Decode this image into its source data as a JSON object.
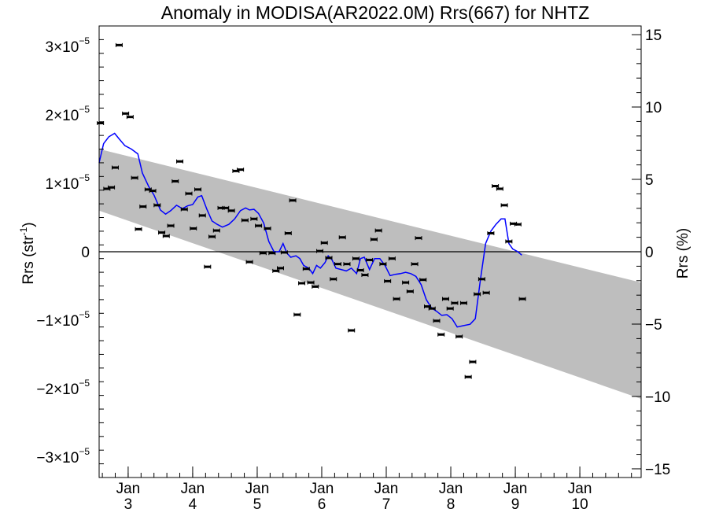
{
  "chart_data": {
    "type": "scatter",
    "title": "Anomaly in MODISA(AR2022.0M) Rrs(667) for NHTZ",
    "ylabel_left": "Rrs (str",
    "ylabel_left_sup": "-1",
    "ylabel_left_end": ")",
    "ylabel_right": "Rrs (%)",
    "x_ticks": [
      {
        "top": "Jan",
        "bottom": "3",
        "x": 3
      },
      {
        "top": "Jan",
        "bottom": "4",
        "x": 4
      },
      {
        "top": "Jan",
        "bottom": "5",
        "x": 5
      },
      {
        "top": "Jan",
        "bottom": "6",
        "x": 6
      },
      {
        "top": "Jan",
        "bottom": "7",
        "x": 7
      },
      {
        "top": "Jan",
        "bottom": "8",
        "x": 8
      },
      {
        "top": "Jan",
        "bottom": "9",
        "x": 9
      },
      {
        "top": "Jan",
        "bottom": "10",
        "x": 10
      }
    ],
    "xlim": [
      2.55,
      10.95
    ],
    "ylim_left": [
      -3.3e-05,
      3.3e-05
    ],
    "ylim_right": [
      -15.6,
      15.6
    ],
    "y_left_ticks": [
      {
        "v": -3e-05,
        "base": "−3×10",
        "exp": "−5"
      },
      {
        "v": -2e-05,
        "base": "−2×10",
        "exp": "−5"
      },
      {
        "v": -1e-05,
        "base": "−1×10",
        "exp": "−5"
      },
      {
        "v": 0,
        "base": "0",
        "exp": ""
      },
      {
        "v": 1e-05,
        "base": "1×10",
        "exp": "−5"
      },
      {
        "v": 2e-05,
        "base": "2×10",
        "exp": "−5"
      },
      {
        "v": 3e-05,
        "base": "3×10",
        "exp": "−5"
      }
    ],
    "y_right_ticks": [
      -15,
      -10,
      -5,
      0,
      5,
      10,
      15
    ],
    "band": {
      "x0": 2.55,
      "x1": 10.95,
      "upper0": 1.5e-05,
      "upper1": -4.5e-06,
      "lower0": 6e-06,
      "lower1": -2.15e-05
    },
    "colors": {
      "band": "#bebebe",
      "line": "#0000ff",
      "points": "#000000",
      "zero": "#000000"
    },
    "points": [
      [
        2.57,
        1.88e-05
      ],
      [
        2.67,
        9.2e-06
      ],
      [
        2.74,
        9.4e-06
      ],
      [
        2.8,
        1.23e-05
      ],
      [
        2.86,
        3.02e-05
      ],
      [
        2.96,
        2.02e-05
      ],
      [
        3.03,
        1.97e-05
      ],
      [
        3.1,
        1.08e-05
      ],
      [
        3.16,
        3.3e-06
      ],
      [
        3.23,
        6.6e-06
      ],
      [
        3.31,
        9.1e-06
      ],
      [
        3.38,
        8.9e-06
      ],
      [
        3.45,
        6.8e-06
      ],
      [
        3.52,
        2.8e-06
      ],
      [
        3.59,
        2.3e-06
      ],
      [
        3.66,
        3.8e-06
      ],
      [
        3.73,
        1.03e-05
      ],
      [
        3.8,
        1.32e-05
      ],
      [
        3.87,
        6.2e-06
      ],
      [
        3.94,
        8.5e-06
      ],
      [
        4.01,
        3.4e-06
      ],
      [
        4.08,
        9.1e-06
      ],
      [
        4.15,
        5.3e-06
      ],
      [
        4.23,
        -2.2e-06
      ],
      [
        4.3,
        2.2e-06
      ],
      [
        4.37,
        3.1e-06
      ],
      [
        4.44,
        6.4e-06
      ],
      [
        4.51,
        6.4e-06
      ],
      [
        4.6,
        6e-06
      ],
      [
        4.67,
        1.18e-05
      ],
      [
        4.74,
        1.2e-05
      ],
      [
        4.81,
        4.6e-06
      ],
      [
        4.88,
        -1.5e-06
      ],
      [
        4.95,
        4.8e-06
      ],
      [
        5.02,
        3.8e-06
      ],
      [
        5.09,
        -2e-07
      ],
      [
        5.16,
        3.4e-06
      ],
      [
        5.23,
        -2e-07
      ],
      [
        5.29,
        -2.8e-06
      ],
      [
        5.36,
        -2.4e-06
      ],
      [
        5.42,
        -1e-07
      ],
      [
        5.48,
        2.7e-06
      ],
      [
        5.55,
        7.5e-06
      ],
      [
        5.62,
        -9.2e-06
      ],
      [
        5.69,
        -4.6e-06
      ],
      [
        5.76,
        -2.5e-06
      ],
      [
        5.83,
        -4.5e-06
      ],
      [
        5.9,
        -5.1e-06
      ],
      [
        5.97,
        1e-07
      ],
      [
        6.04,
        1.3e-06
      ],
      [
        6.11,
        -9e-07
      ],
      [
        6.18,
        -4e-06
      ],
      [
        6.25,
        -1.8e-06
      ],
      [
        6.32,
        2.1e-06
      ],
      [
        6.39,
        -1.8e-06
      ],
      [
        6.46,
        -1.15e-05
      ],
      [
        6.53,
        -1e-06
      ],
      [
        6.6,
        -2.7e-06
      ],
      [
        6.67,
        -3.4e-06
      ],
      [
        6.74,
        -1.2e-06
      ],
      [
        6.81,
        1.8e-06
      ],
      [
        6.88,
        3.1e-06
      ],
      [
        6.95,
        -1.8e-06
      ],
      [
        7.02,
        -4.3e-06
      ],
      [
        7.09,
        -1e-06
      ],
      [
        7.16,
        -6.9e-06
      ],
      [
        7.3,
        -4.5e-06
      ],
      [
        7.37,
        -5.8e-06
      ],
      [
        7.44,
        -1.8e-06
      ],
      [
        7.5,
        2e-06
      ],
      [
        7.57,
        -4.1e-06
      ],
      [
        7.64,
        -8e-06
      ],
      [
        7.71,
        -8.3e-06
      ],
      [
        7.78,
        -1.01e-05
      ],
      [
        7.85,
        -1.21e-05
      ],
      [
        7.92,
        -6.9e-06
      ],
      [
        7.99,
        -8.3e-06
      ],
      [
        8.06,
        -7.5e-06
      ],
      [
        8.13,
        -1.24e-05
      ],
      [
        8.2,
        -7.5e-06
      ],
      [
        8.27,
        -1.83e-05
      ],
      [
        8.34,
        -1.61e-05
      ],
      [
        8.41,
        -6.2e-06
      ],
      [
        8.48,
        -4e-06
      ],
      [
        8.55,
        -6e-06
      ],
      [
        8.62,
        2.7e-06
      ],
      [
        8.69,
        9.6e-06
      ],
      [
        8.76,
        9.2e-06
      ],
      [
        8.83,
        6.8e-06
      ],
      [
        8.9,
        1.5e-06
      ],
      [
        8.97,
        4.1e-06
      ],
      [
        9.04,
        4e-06
      ],
      [
        9.11,
        -6.9e-06
      ]
    ],
    "line": [
      [
        2.55,
        1.3e-05
      ],
      [
        2.62,
        1.58e-05
      ],
      [
        2.7,
        1.68e-05
      ],
      [
        2.79,
        1.73e-05
      ],
      [
        2.86,
        1.65e-05
      ],
      [
        2.95,
        1.55e-05
      ],
      [
        3.05,
        1.5e-05
      ],
      [
        3.15,
        1.43e-05
      ],
      [
        3.22,
        1.15e-05
      ],
      [
        3.32,
        9.5e-06
      ],
      [
        3.4,
        8.3e-06
      ],
      [
        3.5,
        6.1e-06
      ],
      [
        3.58,
        5.5e-06
      ],
      [
        3.66,
        6e-06
      ],
      [
        3.75,
        6.8e-06
      ],
      [
        3.84,
        6.3e-06
      ],
      [
        3.92,
        6.7e-06
      ],
      [
        4.0,
        6.9e-06
      ],
      [
        4.08,
        8e-06
      ],
      [
        4.14,
        8.2e-06
      ],
      [
        4.22,
        6.2e-06
      ],
      [
        4.3,
        4.5e-06
      ],
      [
        4.38,
        4e-06
      ],
      [
        4.46,
        3.6e-06
      ],
      [
        4.56,
        4e-06
      ],
      [
        4.65,
        4.8e-06
      ],
      [
        4.74,
        6e-06
      ],
      [
        4.82,
        6.4e-06
      ],
      [
        4.88,
        6.1e-06
      ],
      [
        4.95,
        6.2e-06
      ],
      [
        5.02,
        5.6e-06
      ],
      [
        5.1,
        4.2e-06
      ],
      [
        5.18,
        1.5e-06
      ],
      [
        5.26,
        0.0
      ],
      [
        5.34,
        0.0
      ],
      [
        5.4,
        1.2e-06
      ],
      [
        5.46,
        -2e-07
      ],
      [
        5.52,
        -8e-07
      ],
      [
        5.6,
        -6e-07
      ],
      [
        5.66,
        -1e-06
      ],
      [
        5.72,
        -2e-06
      ],
      [
        5.8,
        -2.4e-06
      ],
      [
        5.86,
        -3.2e-06
      ],
      [
        5.92,
        -2e-06
      ],
      [
        5.98,
        -2.4e-06
      ],
      [
        6.05,
        -1.6e-06
      ],
      [
        6.1,
        -6e-07
      ],
      [
        6.16,
        -1.2e-06
      ],
      [
        6.22,
        -2.4e-06
      ],
      [
        6.3,
        -2.6e-06
      ],
      [
        6.38,
        -2.8e-06
      ],
      [
        6.46,
        -2.4e-06
      ],
      [
        6.54,
        -3.2e-06
      ],
      [
        6.6,
        -1e-06
      ],
      [
        6.66,
        -8e-07
      ],
      [
        6.74,
        -2.6e-06
      ],
      [
        6.82,
        -1e-06
      ],
      [
        6.9,
        -1e-06
      ],
      [
        6.98,
        -2e-06
      ],
      [
        7.06,
        -3.5e-06
      ],
      [
        7.14,
        -3.3e-06
      ],
      [
        7.22,
        -3.2e-06
      ],
      [
        7.3,
        -3e-06
      ],
      [
        7.38,
        -3.2e-06
      ],
      [
        7.46,
        -3.6e-06
      ],
      [
        7.54,
        -4.8e-06
      ],
      [
        7.62,
        -7e-06
      ],
      [
        7.7,
        -8.2e-06
      ],
      [
        7.78,
        -8.7e-06
      ],
      [
        7.86,
        -9.3e-06
      ],
      [
        7.94,
        -9.2e-06
      ],
      [
        8.02,
        -9.8e-06
      ],
      [
        8.1,
        -1.1e-05
      ],
      [
        8.2,
        -1.08e-05
      ],
      [
        8.3,
        -1.06e-05
      ],
      [
        8.38,
        -9.8e-06
      ],
      [
        8.46,
        -4e-06
      ],
      [
        8.54,
        1.2e-06
      ],
      [
        8.62,
        3e-06
      ],
      [
        8.7,
        4e-06
      ],
      [
        8.78,
        4.8e-06
      ],
      [
        8.84,
        4.8e-06
      ],
      [
        8.9,
        1.2e-06
      ],
      [
        8.96,
        4e-07
      ],
      [
        9.04,
        0.0
      ],
      [
        9.1,
        -5e-07
      ]
    ]
  }
}
